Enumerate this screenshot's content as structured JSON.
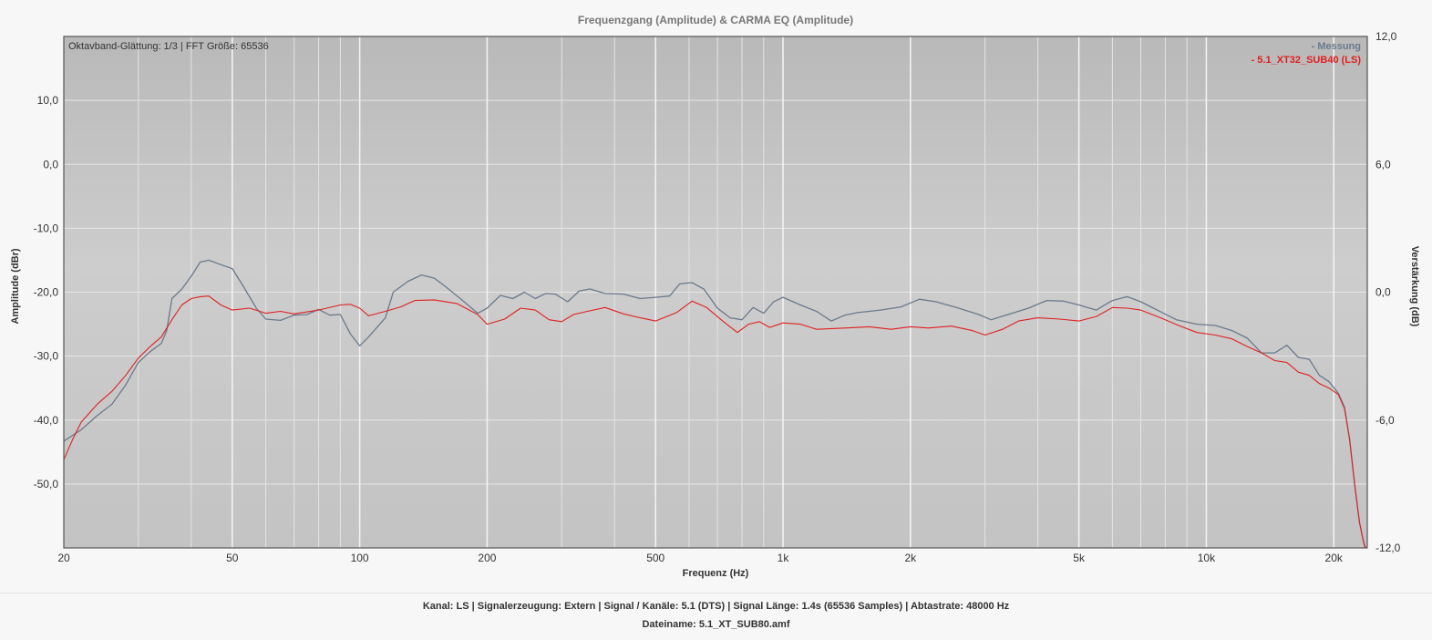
{
  "chart_data": {
    "type": "line",
    "title": "Frequenzgang (Amplitude) & CARMA EQ (Amplitude)",
    "subtitle": "Oktavband-Glättung: 1/3 | FFT Größe: 65536",
    "xlabel": "Frequenz (Hz)",
    "ylabel": "Amplitude (dBr)",
    "y2label": "Verstärkung (dB)",
    "x_scale": "log",
    "xlim": [
      20,
      24000
    ],
    "ylim": [
      -60,
      20
    ],
    "y2lim": [
      -12,
      12
    ],
    "x_ticks": [
      {
        "value": 20,
        "label": "20"
      },
      {
        "value": 50,
        "label": "50"
      },
      {
        "value": 100,
        "label": "100"
      },
      {
        "value": 200,
        "label": "200"
      },
      {
        "value": 500,
        "label": "500"
      },
      {
        "value": 1000,
        "label": "1k"
      },
      {
        "value": 2000,
        "label": "2k"
      },
      {
        "value": 5000,
        "label": "5k"
      },
      {
        "value": 10000,
        "label": "10k"
      },
      {
        "value": 20000,
        "label": "20k"
      }
    ],
    "y_ticks": [
      {
        "value": 10,
        "label": "10,0"
      },
      {
        "value": 0,
        "label": "0,0"
      },
      {
        "value": -10,
        "label": "-10,0"
      },
      {
        "value": -20,
        "label": "-20,0"
      },
      {
        "value": -30,
        "label": "-30,0"
      },
      {
        "value": -40,
        "label": "-40,0"
      },
      {
        "value": -50,
        "label": "-50,0"
      }
    ],
    "y2_ticks": [
      {
        "value": 12,
        "label": "12,0"
      },
      {
        "value": 6,
        "label": "6,0"
      },
      {
        "value": 0,
        "label": "0,0"
      },
      {
        "value": -6,
        "label": "-6,0"
      },
      {
        "value": -12,
        "label": "-12,0"
      }
    ],
    "grid": true,
    "legend": "top-right",
    "series": [
      {
        "name": "- Messung",
        "color": "#6b7a8c",
        "points": [
          [
            20,
            -43.3
          ],
          [
            22,
            -41.5
          ],
          [
            24,
            -39.3
          ],
          [
            26,
            -37.5
          ],
          [
            28,
            -34.5
          ],
          [
            30,
            -31
          ],
          [
            32,
            -29.3
          ],
          [
            34,
            -28
          ],
          [
            35,
            -26
          ],
          [
            36,
            -21
          ],
          [
            38,
            -19.5
          ],
          [
            40,
            -17.5
          ],
          [
            42,
            -15.3
          ],
          [
            44,
            -15
          ],
          [
            47,
            -15.7
          ],
          [
            50,
            -16.3
          ],
          [
            53,
            -19
          ],
          [
            57,
            -22.5
          ],
          [
            60,
            -24.2
          ],
          [
            65,
            -24.4
          ],
          [
            70,
            -23.6
          ],
          [
            75,
            -23.5
          ],
          [
            80,
            -22.7
          ],
          [
            85,
            -23.6
          ],
          [
            90,
            -23.5
          ],
          [
            95,
            -26.5
          ],
          [
            100,
            -28.4
          ],
          [
            105,
            -27
          ],
          [
            115,
            -24
          ],
          [
            120,
            -20
          ],
          [
            130,
            -18.3
          ],
          [
            140,
            -17.3
          ],
          [
            150,
            -17.8
          ],
          [
            160,
            -19.2
          ],
          [
            175,
            -21.3
          ],
          [
            190,
            -23.3
          ],
          [
            200,
            -22.5
          ],
          [
            215,
            -20.5
          ],
          [
            230,
            -21
          ],
          [
            245,
            -20
          ],
          [
            260,
            -21
          ],
          [
            275,
            -20.2
          ],
          [
            290,
            -20.3
          ],
          [
            310,
            -21.5
          ],
          [
            330,
            -19.8
          ],
          [
            350,
            -19.5
          ],
          [
            380,
            -20.2
          ],
          [
            420,
            -20.3
          ],
          [
            460,
            -21
          ],
          [
            500,
            -20.8
          ],
          [
            540,
            -20.6
          ],
          [
            570,
            -18.7
          ],
          [
            610,
            -18.5
          ],
          [
            650,
            -19.5
          ],
          [
            700,
            -22.5
          ],
          [
            750,
            -24
          ],
          [
            800,
            -24.3
          ],
          [
            850,
            -22.4
          ],
          [
            900,
            -23.3
          ],
          [
            950,
            -21.5
          ],
          [
            1000,
            -20.8
          ],
          [
            1100,
            -22
          ],
          [
            1200,
            -23
          ],
          [
            1300,
            -24.5
          ],
          [
            1400,
            -23.6
          ],
          [
            1500,
            -23.2
          ],
          [
            1700,
            -22.8
          ],
          [
            1900,
            -22.3
          ],
          [
            2100,
            -21.1
          ],
          [
            2300,
            -21.5
          ],
          [
            2600,
            -22.5
          ],
          [
            2900,
            -23.5
          ],
          [
            3100,
            -24.3
          ],
          [
            3400,
            -23.5
          ],
          [
            3800,
            -22.5
          ],
          [
            4200,
            -21.3
          ],
          [
            4600,
            -21.4
          ],
          [
            5000,
            -22
          ],
          [
            5500,
            -22.8
          ],
          [
            6000,
            -21.3
          ],
          [
            6500,
            -20.7
          ],
          [
            7000,
            -21.5
          ],
          [
            7500,
            -22.5
          ],
          [
            8500,
            -24.3
          ],
          [
            9500,
            -25
          ],
          [
            10500,
            -25.2
          ],
          [
            11500,
            -26
          ],
          [
            12500,
            -27.2
          ],
          [
            13500,
            -29.5
          ],
          [
            14500,
            -29.5
          ],
          [
            15500,
            -28.3
          ],
          [
            16500,
            -30.2
          ],
          [
            17500,
            -30.5
          ],
          [
            18500,
            -33
          ],
          [
            19500,
            -34
          ],
          [
            20500,
            -35.8
          ],
          [
            21200,
            -38
          ],
          [
            21800,
            -43
          ],
          [
            22400,
            -50
          ],
          [
            23000,
            -56
          ],
          [
            23500,
            -59
          ],
          [
            23700,
            -60
          ]
        ]
      },
      {
        "name": "- 5.1_XT32_SUB40 (LS)",
        "color": "#e02020",
        "points": [
          [
            20,
            -46.2
          ],
          [
            21,
            -43
          ],
          [
            22,
            -40.3
          ],
          [
            24,
            -37.5
          ],
          [
            26,
            -35.5
          ],
          [
            28,
            -33
          ],
          [
            30,
            -30.3
          ],
          [
            32,
            -28.5
          ],
          [
            34,
            -27
          ],
          [
            36,
            -24.3
          ],
          [
            38,
            -22
          ],
          [
            40,
            -21
          ],
          [
            42,
            -20.7
          ],
          [
            44,
            -20.6
          ],
          [
            47,
            -22
          ],
          [
            50,
            -22.8
          ],
          [
            55,
            -22.5
          ],
          [
            60,
            -23.3
          ],
          [
            65,
            -23
          ],
          [
            70,
            -23.4
          ],
          [
            80,
            -22.8
          ],
          [
            90,
            -22
          ],
          [
            95,
            -21.9
          ],
          [
            100,
            -22.5
          ],
          [
            105,
            -23.7
          ],
          [
            115,
            -23
          ],
          [
            125,
            -22.3
          ],
          [
            135,
            -21.3
          ],
          [
            150,
            -21.2
          ],
          [
            170,
            -21.8
          ],
          [
            190,
            -23.5
          ],
          [
            200,
            -25
          ],
          [
            220,
            -24.2
          ],
          [
            240,
            -22.5
          ],
          [
            260,
            -22.8
          ],
          [
            280,
            -24.3
          ],
          [
            300,
            -24.6
          ],
          [
            320,
            -23.5
          ],
          [
            345,
            -23
          ],
          [
            380,
            -22.4
          ],
          [
            420,
            -23.4
          ],
          [
            460,
            -24
          ],
          [
            500,
            -24.5
          ],
          [
            560,
            -23.2
          ],
          [
            610,
            -21.4
          ],
          [
            660,
            -22.4
          ],
          [
            720,
            -24.5
          ],
          [
            780,
            -26.3
          ],
          [
            830,
            -25
          ],
          [
            880,
            -24.6
          ],
          [
            930,
            -25.5
          ],
          [
            1000,
            -24.8
          ],
          [
            1100,
            -25
          ],
          [
            1200,
            -25.8
          ],
          [
            1400,
            -25.6
          ],
          [
            1600,
            -25.4
          ],
          [
            1800,
            -25.8
          ],
          [
            2000,
            -25.4
          ],
          [
            2200,
            -25.6
          ],
          [
            2500,
            -25.3
          ],
          [
            2800,
            -26
          ],
          [
            3000,
            -26.7
          ],
          [
            3300,
            -25.8
          ],
          [
            3600,
            -24.5
          ],
          [
            4000,
            -24
          ],
          [
            4500,
            -24.2
          ],
          [
            5000,
            -24.5
          ],
          [
            5500,
            -23.8
          ],
          [
            6000,
            -22.4
          ],
          [
            6500,
            -22.5
          ],
          [
            7000,
            -22.8
          ],
          [
            7800,
            -24
          ],
          [
            8600,
            -25.2
          ],
          [
            9500,
            -26.3
          ],
          [
            10500,
            -26.7
          ],
          [
            11500,
            -27.3
          ],
          [
            12500,
            -28.5
          ],
          [
            13500,
            -29.5
          ],
          [
            14500,
            -30.7
          ],
          [
            15500,
            -31
          ],
          [
            16500,
            -32.5
          ],
          [
            17500,
            -33
          ],
          [
            18500,
            -34.3
          ],
          [
            19500,
            -35
          ],
          [
            20500,
            -36
          ],
          [
            21200,
            -38.2
          ],
          [
            21800,
            -43
          ],
          [
            22400,
            -50
          ],
          [
            23000,
            -56
          ],
          [
            23500,
            -59
          ],
          [
            23800,
            -60
          ]
        ]
      }
    ]
  },
  "footer": {
    "line1": "Kanal: LS  |  Signalerzeugung: Extern   |  Signal / Kanäle: 5.1 (DTS)  |  Signal Länge: 1.4s (65536 Samples)  |  Abtastrate: 48000 Hz",
    "line2": "Dateiname: 5.1_XT_SUB80.amf"
  }
}
